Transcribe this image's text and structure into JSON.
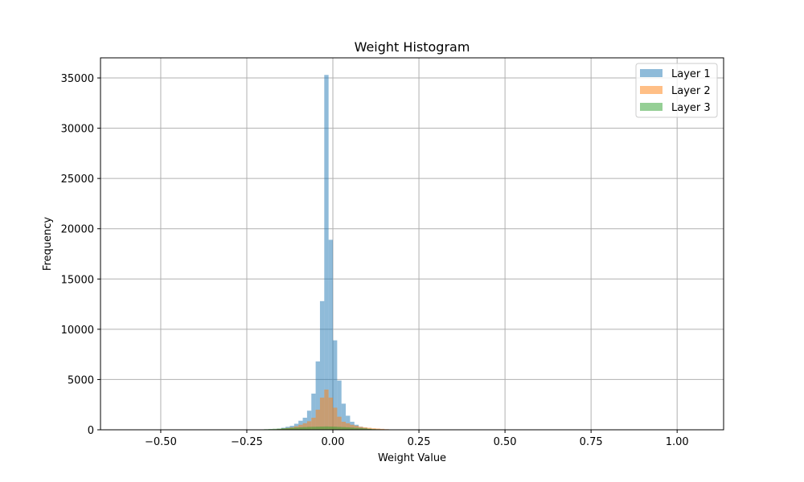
{
  "chart_data": {
    "type": "bar",
    "title": "Weight Histogram",
    "xlabel": "Weight Value",
    "ylabel": "Frequency",
    "xlim": [
      -0.675,
      1.135
    ],
    "ylim": [
      0,
      37000
    ],
    "xticks": [
      -0.5,
      -0.25,
      0.0,
      0.25,
      0.5,
      0.75,
      1.0
    ],
    "xtick_labels": [
      "−0.50",
      "−0.25",
      "0.00",
      "0.25",
      "0.50",
      "0.75",
      "1.00"
    ],
    "yticks": [
      0,
      5000,
      10000,
      15000,
      20000,
      25000,
      30000,
      35000
    ],
    "ytick_labels": [
      "0",
      "5000",
      "10000",
      "15000",
      "20000",
      "25000",
      "30000",
      "35000"
    ],
    "grid": true,
    "legend_position": "top-right",
    "series": [
      {
        "name": "Layer 1",
        "color": "#1f77b4",
        "bin_width": 0.0125,
        "bins": [
          {
            "x0": -0.1625,
            "count": 100
          },
          {
            "x0": -0.15,
            "count": 200
          },
          {
            "x0": -0.1375,
            "count": 300
          },
          {
            "x0": -0.125,
            "count": 400
          },
          {
            "x0": -0.1125,
            "count": 600
          },
          {
            "x0": -0.1,
            "count": 900
          },
          {
            "x0": -0.0875,
            "count": 1200
          },
          {
            "x0": -0.075,
            "count": 1900
          },
          {
            "x0": -0.0625,
            "count": 3600
          },
          {
            "x0": -0.05,
            "count": 6800
          },
          {
            "x0": -0.0375,
            "count": 12800
          },
          {
            "x0": -0.025,
            "count": 35300
          },
          {
            "x0": -0.0125,
            "count": 18900
          },
          {
            "x0": 0.0,
            "count": 8900
          },
          {
            "x0": 0.0125,
            "count": 4900
          },
          {
            "x0": 0.025,
            "count": 2600
          },
          {
            "x0": 0.0375,
            "count": 1400
          },
          {
            "x0": 0.05,
            "count": 800
          },
          {
            "x0": 0.0625,
            "count": 500
          },
          {
            "x0": 0.075,
            "count": 300
          },
          {
            "x0": 0.0875,
            "count": 200
          },
          {
            "x0": 0.1,
            "count": 100
          }
        ]
      },
      {
        "name": "Layer 2",
        "color": "#ff7f0e",
        "bin_width": 0.0125,
        "bins": [
          {
            "x0": -0.175,
            "count": 50
          },
          {
            "x0": -0.1625,
            "count": 80
          },
          {
            "x0": -0.15,
            "count": 120
          },
          {
            "x0": -0.1375,
            "count": 180
          },
          {
            "x0": -0.125,
            "count": 250
          },
          {
            "x0": -0.1125,
            "count": 350
          },
          {
            "x0": -0.1,
            "count": 500
          },
          {
            "x0": -0.0875,
            "count": 650
          },
          {
            "x0": -0.075,
            "count": 850
          },
          {
            "x0": -0.0625,
            "count": 1200
          },
          {
            "x0": -0.05,
            "count": 2000
          },
          {
            "x0": -0.0375,
            "count": 3200
          },
          {
            "x0": -0.025,
            "count": 4000
          },
          {
            "x0": -0.0125,
            "count": 3200
          },
          {
            "x0": 0.0,
            "count": 2200
          },
          {
            "x0": 0.0125,
            "count": 1300
          },
          {
            "x0": 0.025,
            "count": 800
          },
          {
            "x0": 0.0375,
            "count": 650
          },
          {
            "x0": 0.05,
            "count": 500
          },
          {
            "x0": 0.0625,
            "count": 400
          },
          {
            "x0": 0.075,
            "count": 300
          },
          {
            "x0": 0.0875,
            "count": 250
          },
          {
            "x0": 0.1,
            "count": 200
          },
          {
            "x0": 0.1125,
            "count": 150
          },
          {
            "x0": 0.125,
            "count": 120
          },
          {
            "x0": 0.1375,
            "count": 90
          },
          {
            "x0": 0.15,
            "count": 60
          },
          {
            "x0": 0.1625,
            "count": 40
          },
          {
            "x0": 0.175,
            "count": 25
          }
        ]
      },
      {
        "name": "Layer 3",
        "color": "#2ca02c",
        "bin_width": 0.0125,
        "bins": [
          {
            "x0": -0.2,
            "count": 60
          },
          {
            "x0": -0.1875,
            "count": 80
          },
          {
            "x0": -0.175,
            "count": 100
          },
          {
            "x0": -0.1625,
            "count": 120
          },
          {
            "x0": -0.15,
            "count": 150
          },
          {
            "x0": -0.1375,
            "count": 170
          },
          {
            "x0": -0.125,
            "count": 200
          },
          {
            "x0": -0.1125,
            "count": 220
          },
          {
            "x0": -0.1,
            "count": 250
          },
          {
            "x0": -0.0875,
            "count": 270
          },
          {
            "x0": -0.075,
            "count": 290
          },
          {
            "x0": -0.0625,
            "count": 300
          },
          {
            "x0": -0.05,
            "count": 310
          },
          {
            "x0": -0.0375,
            "count": 320
          },
          {
            "x0": -0.025,
            "count": 330
          },
          {
            "x0": -0.0125,
            "count": 320
          },
          {
            "x0": 0.0,
            "count": 310
          },
          {
            "x0": 0.0125,
            "count": 290
          },
          {
            "x0": 0.025,
            "count": 270
          },
          {
            "x0": 0.0375,
            "count": 250
          },
          {
            "x0": 0.05,
            "count": 220
          },
          {
            "x0": 0.0625,
            "count": 190
          },
          {
            "x0": 0.075,
            "count": 160
          },
          {
            "x0": 0.0875,
            "count": 130
          },
          {
            "x0": 0.1,
            "count": 100
          },
          {
            "x0": 0.1125,
            "count": 70
          },
          {
            "x0": 0.125,
            "count": 50
          }
        ]
      }
    ]
  }
}
